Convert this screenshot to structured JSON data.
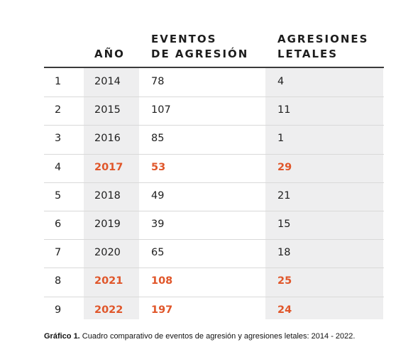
{
  "chart_data": {
    "type": "table",
    "columns": [
      "",
      "AÑO",
      "EVENTOS\nDE AGRESIÓN",
      "AGRESIONES\n LETALES"
    ],
    "rows": [
      {
        "n": "1",
        "year": "2014",
        "events": "78",
        "lethal": "4",
        "highlight": false
      },
      {
        "n": "2",
        "year": "2015",
        "events": "107",
        "lethal": "11",
        "highlight": false
      },
      {
        "n": "3",
        "year": "2016",
        "events": "85",
        "lethal": "1",
        "highlight": false
      },
      {
        "n": "4",
        "year": "2017",
        "events": "53",
        "lethal": "29",
        "highlight": true
      },
      {
        "n": "5",
        "year": "2018",
        "events": "49",
        "lethal": "21",
        "highlight": false
      },
      {
        "n": "6",
        "year": "2019",
        "events": "39",
        "lethal": "15",
        "highlight": false
      },
      {
        "n": "7",
        "year": "2020",
        "events": "65",
        "lethal": "18",
        "highlight": false
      },
      {
        "n": "8",
        "year": "2021",
        "events": "108",
        "lethal": "25",
        "highlight": true
      },
      {
        "n": "9",
        "year": "2022",
        "events": "197",
        "lethal": "24",
        "highlight": true
      }
    ],
    "highlight_color": "#e0562a",
    "shade_color": "#eeeeef"
  },
  "caption": {
    "label": "Gráfico 1.",
    "text": " Cuadro comparativo de eventos de agresión y agresiones letales: 2014 - 2022."
  }
}
